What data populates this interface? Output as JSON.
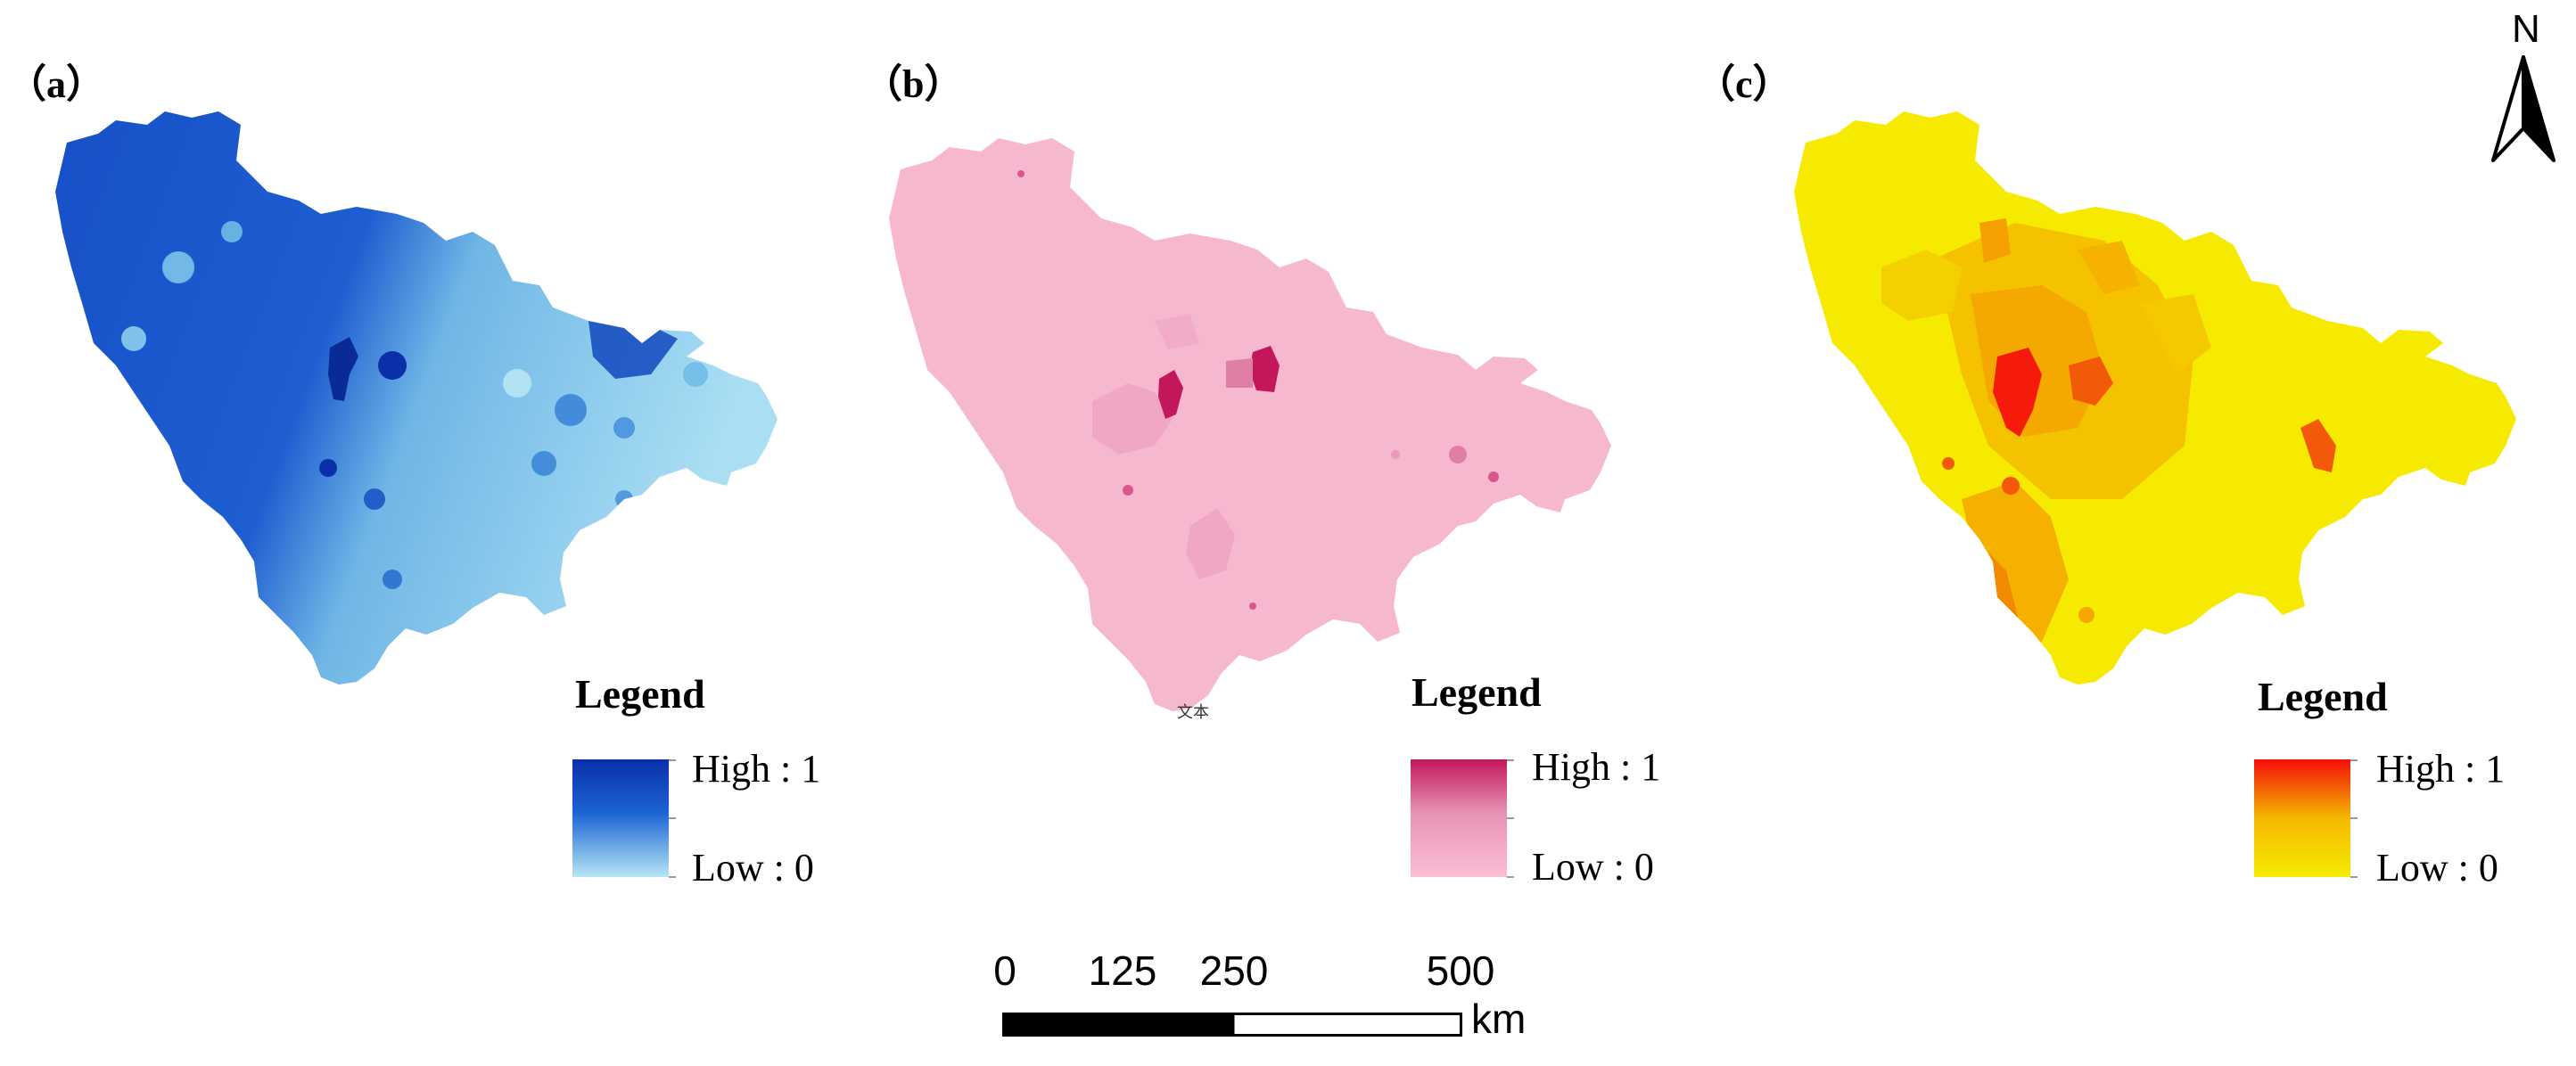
{
  "panels": [
    {
      "label": "（a）",
      "legend": {
        "title": "Legend",
        "high": "High : 1",
        "low": "Low : 0"
      },
      "colors": {
        "high": "#0a2fa8",
        "mid": "#1b63d4",
        "low": "#b6e6f5"
      }
    },
    {
      "label": "（b）",
      "legend": {
        "title": "Legend",
        "high": "High : 1",
        "low": "Low : 0"
      },
      "colors": {
        "high": "#c2185b",
        "mid": "#e891b4",
        "low": "#f9bfd6"
      }
    },
    {
      "label": "（c）",
      "legend": {
        "title": "Legend",
        "high": "High : 1",
        "low": "Low : 0"
      },
      "colors": {
        "high": "#f50f0a",
        "mid": "#f5b800",
        "low": "#f5ec00"
      }
    }
  ],
  "stray_text": "文本",
  "north_arrow": {
    "letter": "N",
    "icon": "north-arrow-icon"
  },
  "scale_bar": {
    "ticks": [
      "0",
      "125",
      "250",
      "500"
    ],
    "unit": "km"
  }
}
